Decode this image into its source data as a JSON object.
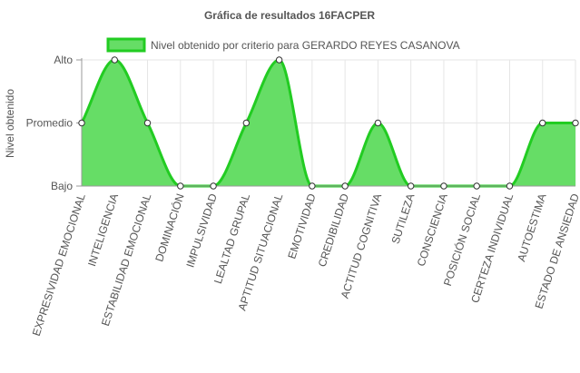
{
  "chart_data": {
    "type": "area",
    "title": "Gráfica de resultados 16FACPER",
    "ylabel": "Nivel obtenido",
    "xlabel": "",
    "y_levels": [
      "Bajo",
      "Promedio",
      "Alto"
    ],
    "ylim": [
      0,
      2
    ],
    "grid": true,
    "legend_position": "top",
    "categories": [
      "EXPRESIVIDAD EMOCIONAL",
      "INTELIGENCIA",
      "ESTABILIDAD EMOCIONAL",
      "DOMINACIÓN",
      "IMPULSIVIDAD",
      "LEALTAD GRUPAL",
      "APTITUD SITUACIONAL",
      "EMOTIVIDAD",
      "CREDIBILIDAD",
      "ACTITUD COGNITIVA",
      "SUTILEZA",
      "CONSCIENCIA",
      "POSICIÓN SOCIAL",
      "CERTEZA INDIVIDUAL",
      "AUTOESTIMA",
      "ESTADO DE ANSIEDAD"
    ],
    "series": [
      {
        "name": "Nivel obtenido por criterio para GERARDO REYES CASANOVA",
        "values": [
          1,
          2,
          1,
          0,
          0,
          1,
          2,
          0,
          0,
          1,
          0,
          0,
          0,
          0,
          1,
          1
        ]
      }
    ],
    "colors": {
      "fill": "#66dd66",
      "line": "#22cc22",
      "point_fill": "#ffffff",
      "point_stroke": "#333333",
      "grid": "#e6e6e6",
      "axis": "#999999"
    }
  }
}
